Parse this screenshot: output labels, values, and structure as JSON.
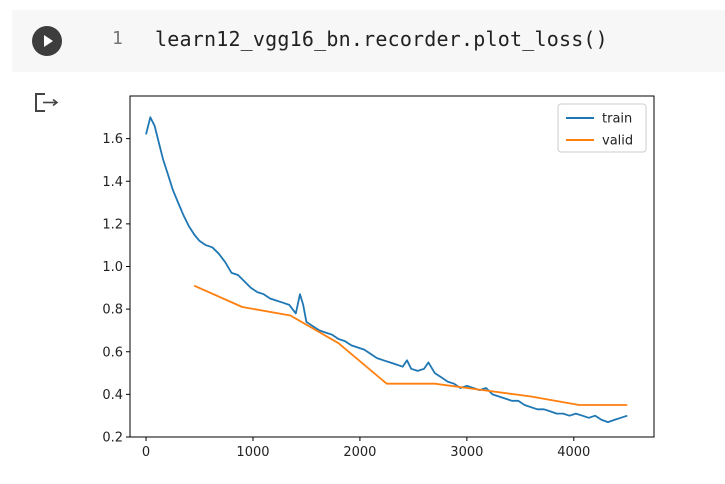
{
  "cell": {
    "line_number": "1",
    "code": "learn12_vgg16_bn.recorder.plot_loss()"
  },
  "icons": {
    "run": "play-icon",
    "output": "output-redirect-icon"
  },
  "chart_data": {
    "type": "line",
    "title": "",
    "xlabel": "",
    "ylabel": "",
    "xlim": [
      -150,
      4750
    ],
    "ylim": [
      0.2,
      1.8
    ],
    "xticks": [
      0,
      1000,
      2000,
      3000,
      4000
    ],
    "yticks": [
      0.2,
      0.4,
      0.6,
      0.8,
      1.0,
      1.2,
      1.4,
      1.6
    ],
    "grid": false,
    "legend_position": "top-right",
    "series": [
      {
        "name": "train",
        "color": "#1f77b4",
        "x": [
          0,
          40,
          80,
          120,
          160,
          200,
          250,
          300,
          350,
          400,
          450,
          500,
          560,
          620,
          680,
          740,
          800,
          860,
          920,
          980,
          1040,
          1100,
          1160,
          1220,
          1280,
          1340,
          1400,
          1440,
          1470,
          1500,
          1560,
          1620,
          1680,
          1740,
          1800,
          1860,
          1920,
          1980,
          2040,
          2100,
          2160,
          2220,
          2280,
          2340,
          2400,
          2440,
          2480,
          2540,
          2600,
          2640,
          2700,
          2760,
          2820,
          2880,
          2940,
          3000,
          3060,
          3120,
          3180,
          3240,
          3300,
          3360,
          3420,
          3480,
          3540,
          3600,
          3660,
          3720,
          3780,
          3840,
          3900,
          3960,
          4020,
          4080,
          4140,
          4200,
          4260,
          4320,
          4380,
          4440,
          4500
        ],
        "values": [
          1.62,
          1.7,
          1.66,
          1.58,
          1.5,
          1.44,
          1.36,
          1.3,
          1.24,
          1.19,
          1.15,
          1.12,
          1.1,
          1.09,
          1.06,
          1.02,
          0.97,
          0.96,
          0.93,
          0.9,
          0.88,
          0.87,
          0.85,
          0.84,
          0.83,
          0.82,
          0.78,
          0.87,
          0.82,
          0.74,
          0.72,
          0.7,
          0.69,
          0.68,
          0.66,
          0.65,
          0.63,
          0.62,
          0.61,
          0.59,
          0.57,
          0.56,
          0.55,
          0.54,
          0.53,
          0.56,
          0.52,
          0.51,
          0.52,
          0.55,
          0.5,
          0.48,
          0.46,
          0.45,
          0.43,
          0.44,
          0.43,
          0.42,
          0.43,
          0.4,
          0.39,
          0.38,
          0.37,
          0.37,
          0.35,
          0.34,
          0.33,
          0.33,
          0.32,
          0.31,
          0.31,
          0.3,
          0.31,
          0.3,
          0.29,
          0.3,
          0.28,
          0.27,
          0.28,
          0.29,
          0.3
        ]
      },
      {
        "name": "valid",
        "color": "#ff7f0e",
        "x": [
          450,
          900,
          1350,
          1800,
          2250,
          2700,
          3150,
          3600,
          4050,
          4500
        ],
        "values": [
          0.91,
          0.81,
          0.77,
          0.64,
          0.45,
          0.45,
          0.42,
          0.39,
          0.35,
          0.35
        ]
      }
    ]
  }
}
